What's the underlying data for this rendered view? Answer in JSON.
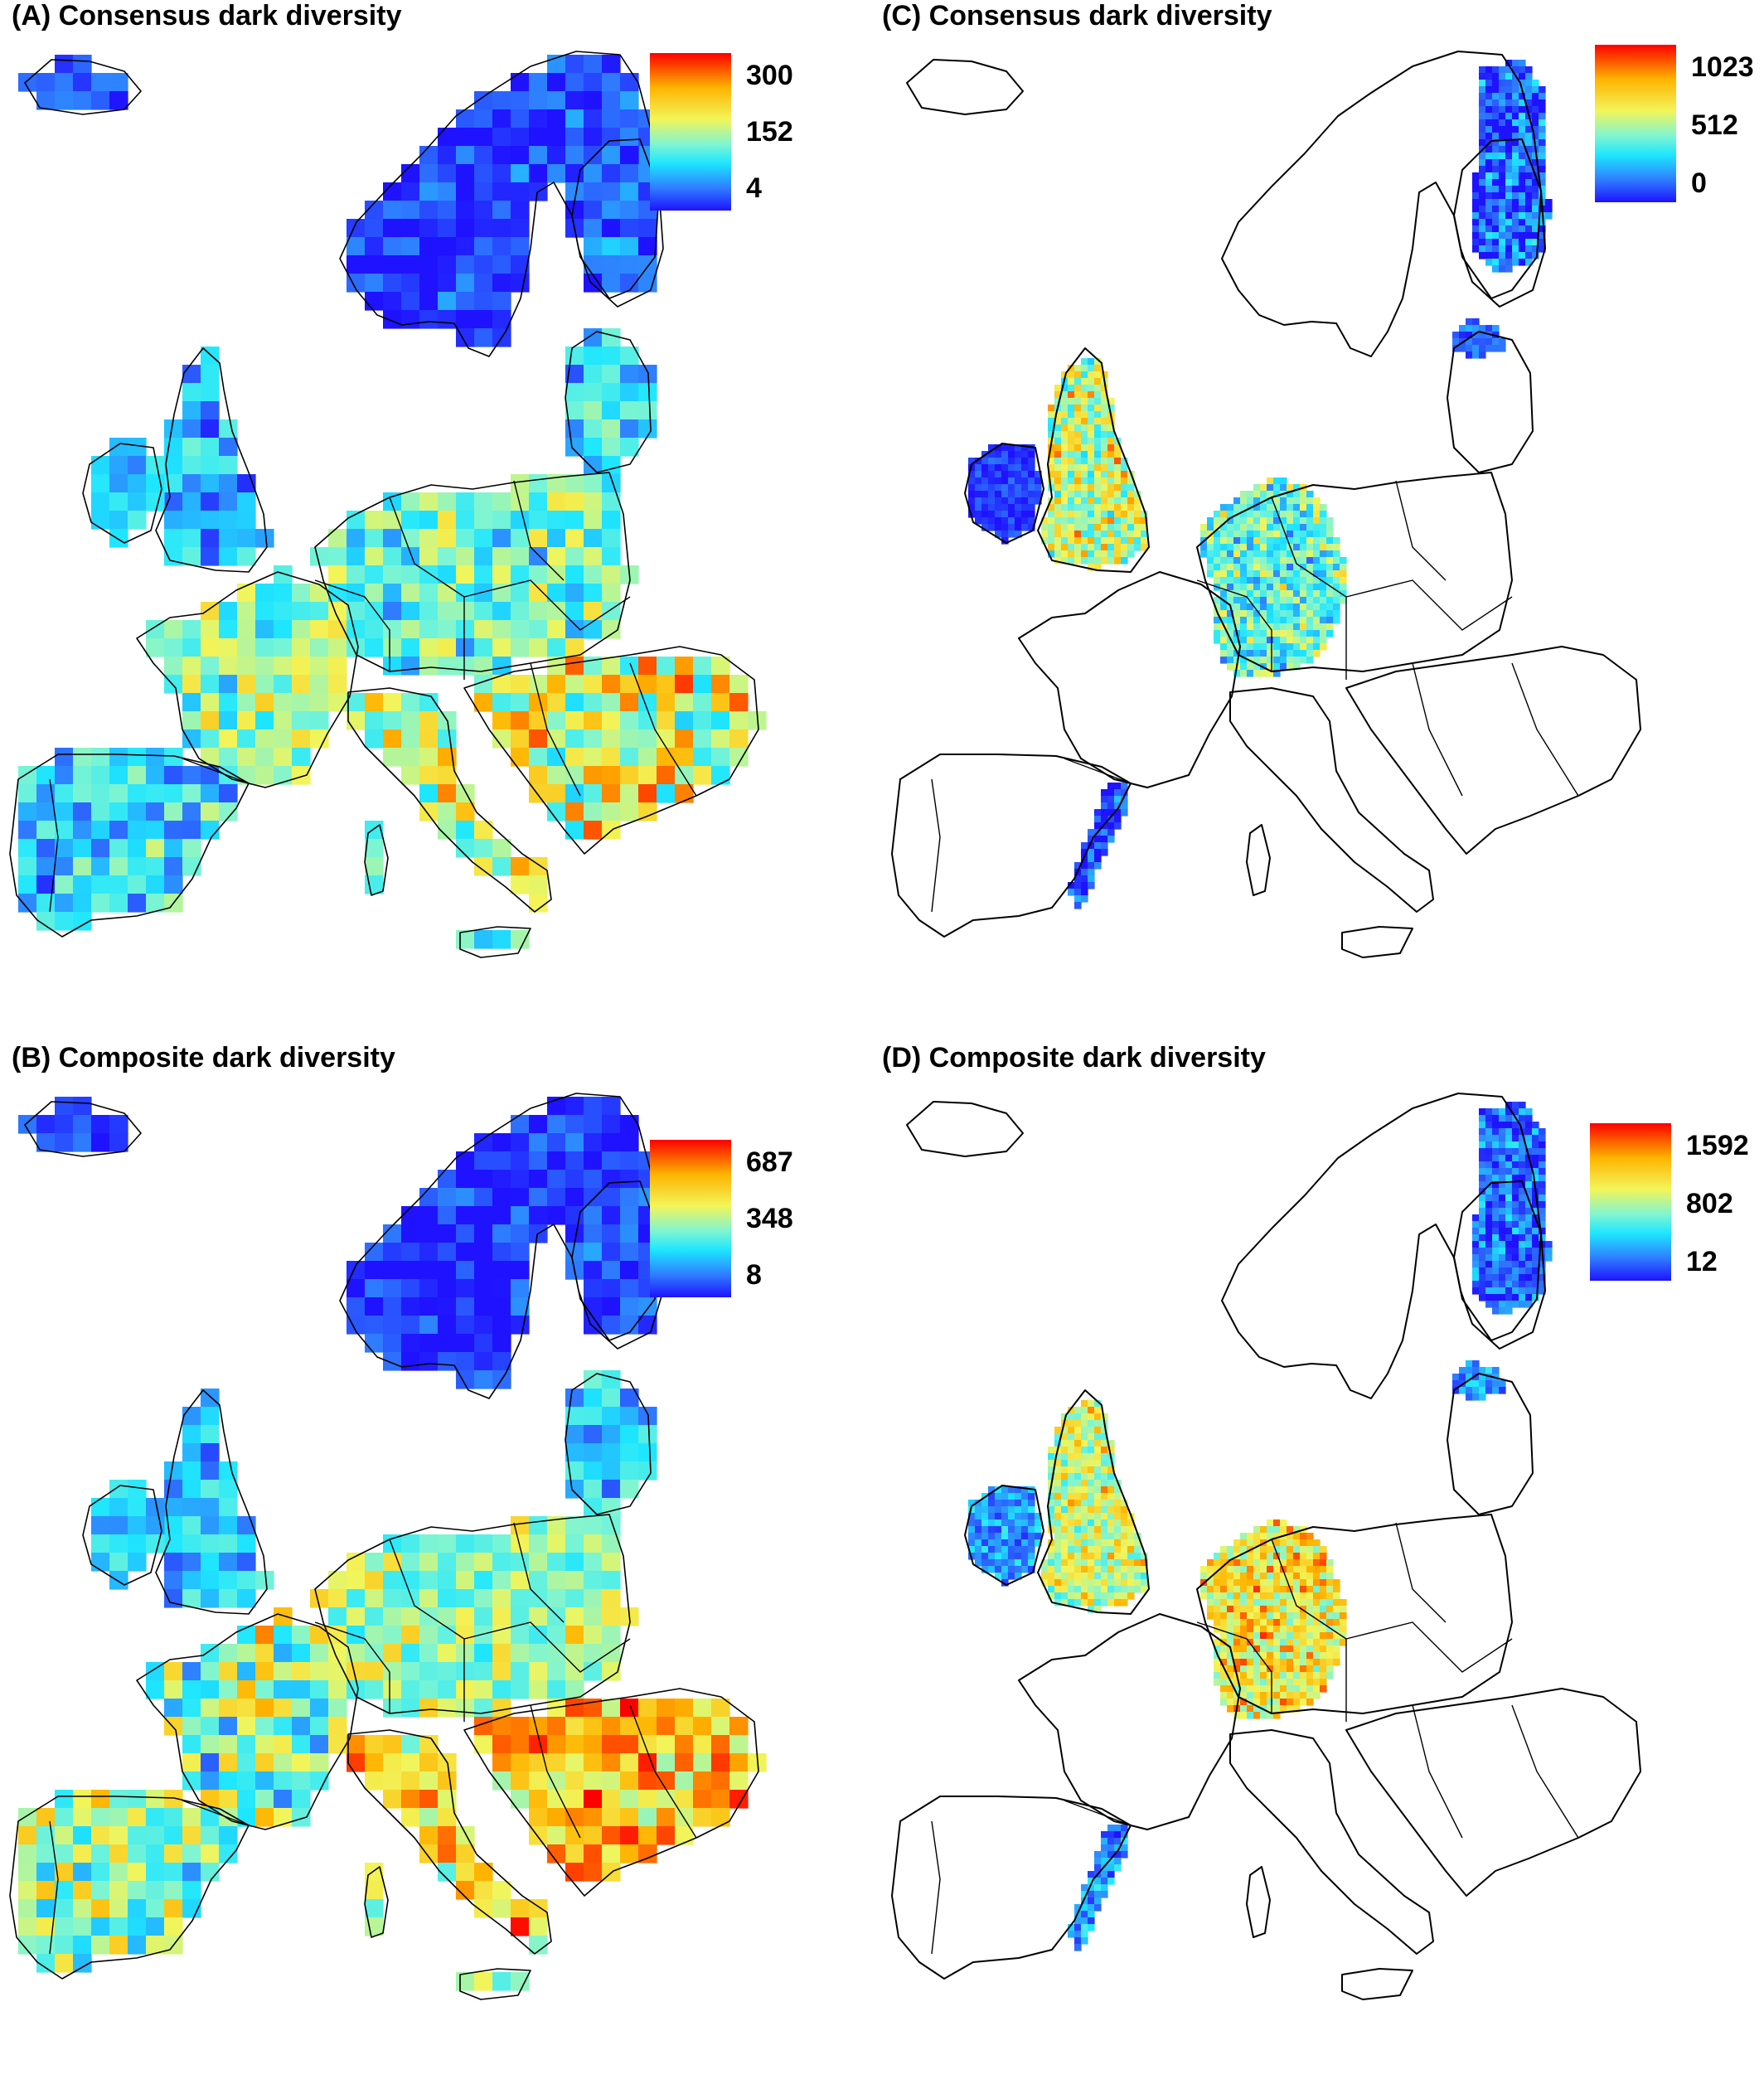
{
  "panels": [
    {
      "id": "A",
      "title": "(A) Consensus dark diversity",
      "legend": {
        "max": "300",
        "mid": "152",
        "min": "4"
      },
      "scope": "europe",
      "mode": "consensus"
    },
    {
      "id": "C",
      "title": "(C) Consensus dark diversity",
      "legend": {
        "max": "1023",
        "mid": "512",
        "min": "0"
      },
      "scope": "subset",
      "mode": "consensus"
    },
    {
      "id": "B",
      "title": "(B) Composite dark diversity",
      "legend": {
        "max": "687",
        "mid": "348",
        "min": "8"
      },
      "scope": "europe",
      "mode": "composite"
    },
    {
      "id": "D",
      "title": "(D) Composite dark diversity",
      "legend": {
        "max": "1592",
        "mid": "802",
        "min": "12"
      },
      "scope": "subset",
      "mode": "composite"
    }
  ],
  "colors": {
    "scale": [
      "#1f12ff",
      "#2f7bff",
      "#1ee6ff",
      "#7ff5d2",
      "#f2f55a",
      "#ffb400",
      "#ff0000"
    ],
    "border": "#000000"
  }
}
